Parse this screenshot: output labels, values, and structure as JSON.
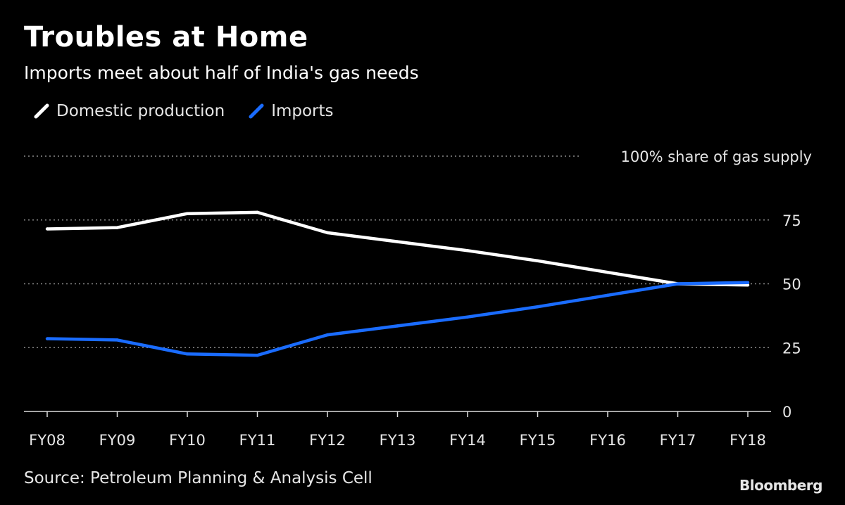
{
  "title": "Troubles at Home",
  "subtitle": "Imports meet about half of India's gas needs",
  "legend": [
    {
      "label": "Domestic production",
      "color": "#ffffff"
    },
    {
      "label": "Imports",
      "color": "#1a6cff"
    }
  ],
  "source": "Source: Petroleum Planning & Analysis Cell",
  "brand": "Bloomberg",
  "chart_data": {
    "type": "line",
    "title": "Troubles at Home",
    "subtitle": "Imports meet about half of India's gas needs",
    "ylabel": "100% share of gas supply",
    "xlabel": "",
    "categories": [
      "FY08",
      "FY09",
      "FY10",
      "FY11",
      "FY12",
      "FY13",
      "FY14",
      "FY15",
      "FY16",
      "FY17",
      "FY18"
    ],
    "series": [
      {
        "name": "Domestic production",
        "color": "#ffffff",
        "values": [
          71.5,
          72,
          77.5,
          78,
          70,
          66.5,
          63,
          59,
          54.5,
          50,
          49.5
        ]
      },
      {
        "name": "Imports",
        "color": "#1a6cff",
        "values": [
          28.5,
          28,
          22.5,
          22,
          30,
          33.5,
          37,
          41,
          45.5,
          50,
          50.5
        ]
      }
    ],
    "ylim": [
      0,
      100
    ],
    "yticks": [
      0,
      25,
      50,
      75
    ],
    "ytick_labels": [
      "0",
      "25",
      "50",
      "75"
    ],
    "grid": true,
    "legend_position": "top-left"
  }
}
